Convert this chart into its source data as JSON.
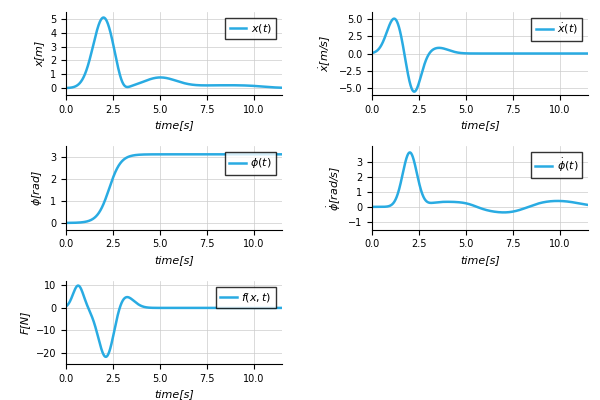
{
  "line_color": "#29ABE2",
  "line_width": 1.8,
  "grid_color": "#cccccc",
  "background_color": "#ffffff",
  "t_max": 11.5,
  "xticks": [
    0.0,
    2.5,
    5.0,
    7.5,
    10.0
  ],
  "plots": [
    {
      "ylabel": "x[m]",
      "legend": "$x(t)$",
      "ylim": [
        -0.5,
        5.5
      ],
      "yticks": [
        0,
        1,
        2,
        3,
        4,
        5
      ]
    },
    {
      "ylabel": "$\\dot{x}$[m/s]",
      "legend": "$\\dot{x}(t)$",
      "ylim": [
        -6.0,
        6.0
      ],
      "yticks": [
        -5.0,
        -2.5,
        0.0,
        2.5,
        5.0
      ]
    },
    {
      "ylabel": "$\\phi$[rad]",
      "legend": "$\\phi(t)$",
      "ylim": [
        -0.3,
        3.5
      ],
      "yticks": [
        0,
        1,
        2,
        3
      ]
    },
    {
      "ylabel": "$\\dot{\\phi}$[rad/s]",
      "legend": "$\\dot{\\phi}(t)$",
      "ylim": [
        -1.5,
        4.0
      ],
      "yticks": [
        -1,
        0,
        1,
        2,
        3
      ]
    },
    {
      "ylabel": "F[N]",
      "legend": "$f(x, t)$",
      "ylim": [
        -25,
        12
      ],
      "yticks": [
        -20,
        -10,
        0,
        10
      ]
    }
  ]
}
